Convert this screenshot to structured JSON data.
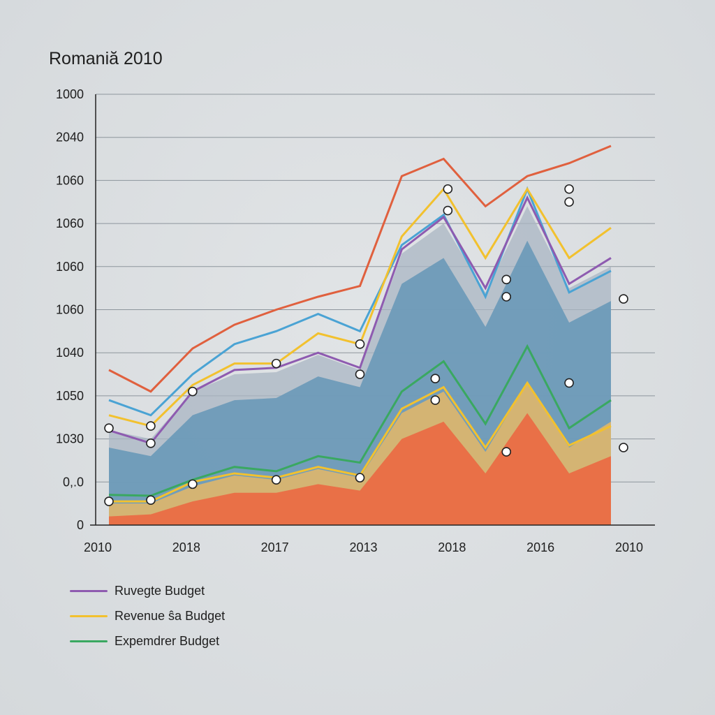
{
  "chart_data": {
    "type": "area",
    "title": "Romaniă 2010",
    "xlabel": "",
    "ylabel": "",
    "y_tick_labels": [
      "0",
      "0,.0",
      "1030",
      "1050",
      "1040",
      "1060",
      "1060",
      "1060",
      "1060",
      "2040",
      "1000"
    ],
    "x_tick_labels": [
      "2010",
      "2018",
      "2017",
      "2013",
      "2018",
      "2016",
      "2010"
    ],
    "x_points": 13,
    "ylim": [
      0,
      10
    ],
    "grid": true,
    "legend_position": "bottom-left",
    "legend": [
      {
        "label": "Ruvegte Budget",
        "color": "#8e5bb0"
      },
      {
        "label": "Revenue ŝa Budget",
        "color": "#f2c12e"
      },
      {
        "label": "Expemdrer Budget",
        "color": "#3aa861"
      }
    ],
    "series": [
      {
        "name": "Orange area",
        "color": "#ea6d45",
        "kind": "area",
        "values": [
          0.2,
          0.25,
          0.55,
          0.75,
          0.75,
          0.95,
          0.8,
          2.0,
          2.4,
          1.2,
          2.6,
          1.2,
          1.6
        ]
      },
      {
        "name": "Tan area",
        "color": "#d9b56f",
        "kind": "area",
        "values": [
          0.5,
          0.5,
          0.9,
          1.15,
          1.05,
          1.3,
          1.1,
          2.6,
          3.1,
          1.7,
          3.3,
          1.8,
          2.4
        ]
      },
      {
        "name": "Blue area",
        "color": "#6e9bb8",
        "kind": "area",
        "values": [
          1.8,
          1.6,
          2.55,
          2.9,
          2.95,
          3.45,
          3.2,
          5.6,
          6.2,
          4.6,
          6.6,
          4.7,
          5.2
        ]
      },
      {
        "name": "Grey area",
        "color": "#a9b6c3",
        "kind": "area",
        "values": [
          2.2,
          2.0,
          3.1,
          3.5,
          3.55,
          3.95,
          3.6,
          6.3,
          7.0,
          5.4,
          7.4,
          5.5,
          6.0
        ]
      },
      {
        "name": "Revenue ŝa Budget",
        "color": "#f2c12e",
        "kind": "line",
        "values": [
          0.55,
          0.55,
          1.0,
          1.2,
          1.1,
          1.35,
          1.15,
          2.7,
          3.2,
          1.8,
          3.3,
          1.85,
          2.3
        ]
      },
      {
        "name": "Expemdrer Budget",
        "color": "#3aa861",
        "kind": "line",
        "values": [
          0.7,
          0.68,
          1.05,
          1.35,
          1.25,
          1.6,
          1.45,
          3.1,
          3.8,
          2.35,
          4.15,
          2.25,
          2.9
        ]
      },
      {
        "name": "Blue line",
        "color": "#4aa3d4",
        "kind": "line",
        "values": [
          2.9,
          2.55,
          3.5,
          4.2,
          4.5,
          4.9,
          4.5,
          6.5,
          7.2,
          5.3,
          7.8,
          5.4,
          5.9
        ]
      },
      {
        "name": "Ruvegte Budget",
        "color": "#8e5bb0",
        "kind": "line",
        "values": [
          2.2,
          1.9,
          3.1,
          3.6,
          3.65,
          4.0,
          3.65,
          6.4,
          7.15,
          5.5,
          7.6,
          5.6,
          6.2
        ]
      },
      {
        "name": "Yellow upper line",
        "color": "#f2c12e",
        "kind": "line",
        "values": [
          2.55,
          2.3,
          3.25,
          3.75,
          3.75,
          4.45,
          4.2,
          6.7,
          7.8,
          6.2,
          7.8,
          6.2,
          6.9
        ]
      },
      {
        "name": "Red line",
        "color": "#e0603e",
        "kind": "line",
        "values": [
          3.6,
          3.1,
          4.1,
          4.65,
          5.0,
          5.3,
          5.55,
          8.1,
          8.5,
          7.4,
          8.1,
          8.4,
          8.8
        ]
      }
    ],
    "markers": [
      {
        "x": 0,
        "y": 2.25
      },
      {
        "x": 0,
        "y": 0.55
      },
      {
        "x": 1,
        "y": 1.9
      },
      {
        "x": 1,
        "y": 0.58
      },
      {
        "x": 1,
        "y": 2.3
      },
      {
        "x": 2,
        "y": 3.1
      },
      {
        "x": 2,
        "y": 0.95
      },
      {
        "x": 4,
        "y": 3.75
      },
      {
        "x": 4,
        "y": 1.05
      },
      {
        "x": 6,
        "y": 3.5
      },
      {
        "x": 6,
        "y": 1.1
      },
      {
        "x": 6,
        "y": 4.2
      },
      {
        "x": 7.8,
        "y": 3.4
      },
      {
        "x": 7.8,
        "y": 2.9
      },
      {
        "x": 8.1,
        "y": 7.3
      },
      {
        "x": 8.1,
        "y": 7.8
      },
      {
        "x": 9.5,
        "y": 5.3
      },
      {
        "x": 9.5,
        "y": 1.7
      },
      {
        "x": 9.5,
        "y": 5.7
      },
      {
        "x": 11,
        "y": 7.5
      },
      {
        "x": 11,
        "y": 3.3
      },
      {
        "x": 11,
        "y": 7.8
      },
      {
        "x": 12.3,
        "y": 5.25
      },
      {
        "x": 12.3,
        "y": 1.8
      }
    ]
  }
}
